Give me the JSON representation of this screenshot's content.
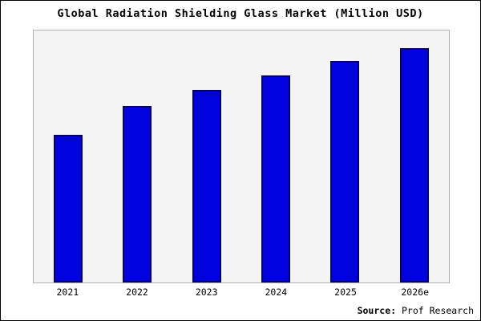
{
  "chart_data": {
    "type": "bar",
    "title": "Global Radiation Shielding Glass Market (Million USD)",
    "categories": [
      "2021",
      "2022",
      "2023",
      "2024",
      "2025",
      "2026e"
    ],
    "values": [
      188,
      224,
      245,
      263,
      281,
      298
    ],
    "ylim": [
      0,
      320
    ],
    "xlabel": "",
    "ylabel": "",
    "grid": false,
    "legend": "none",
    "bar_color": "#0202dd",
    "bar_border_color": "#000066",
    "plot_background": "#f4f4f4",
    "source_label": "Source:",
    "source_value": "Prof Research"
  }
}
